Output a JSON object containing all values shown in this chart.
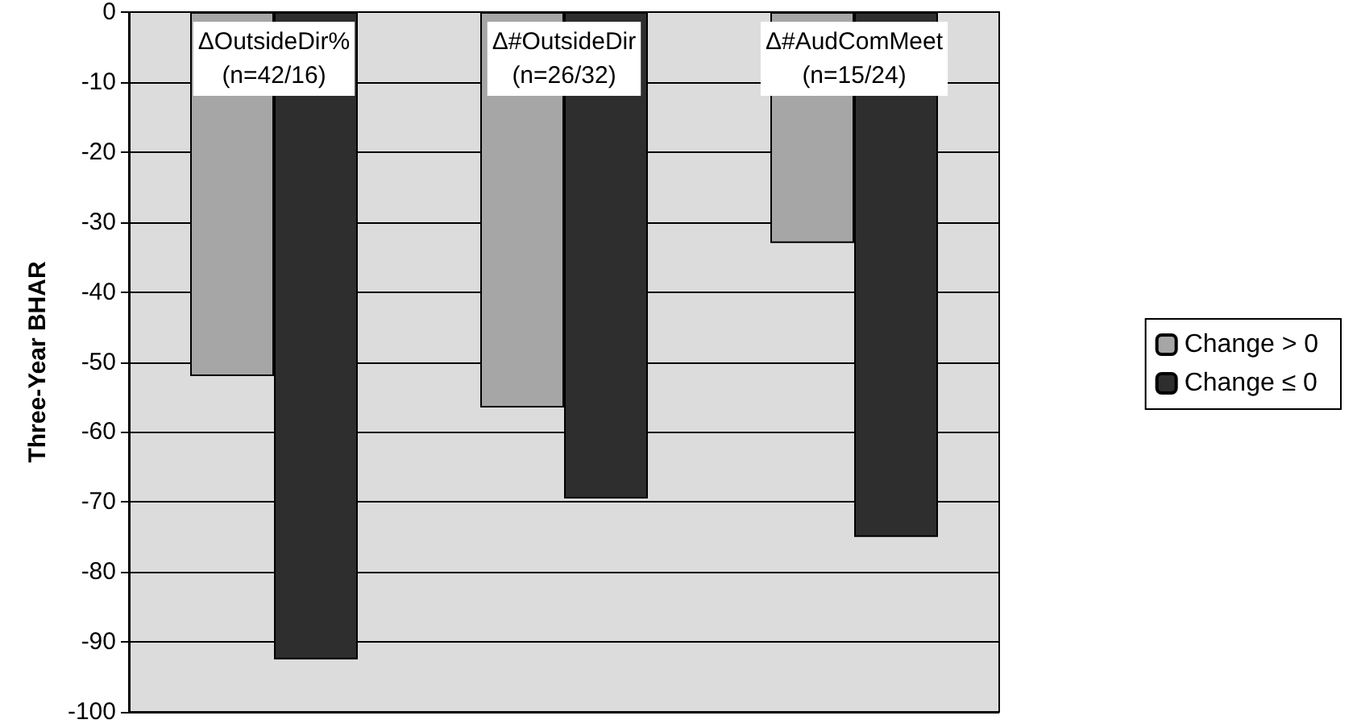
{
  "chart_data": {
    "type": "bar",
    "ylabel": "Three-Year BHAR",
    "categories": [
      "ΔOutsideDir%\n(n=42/16)",
      "Δ#OutsideDir\n(n=26/32)",
      "Δ#AudComMeet\n(n=15/24)"
    ],
    "series": [
      {
        "name": "Change > 0",
        "color": "#a6a6a6",
        "values": [
          -52,
          -56.5,
          -33
        ]
      },
      {
        "name": "Change ≤ 0",
        "color": "#2e2e2e",
        "values": [
          -92.5,
          -69.5,
          -75
        ]
      }
    ],
    "ylim": [
      -100,
      0
    ],
    "yticks": [
      -100,
      -90,
      -80,
      -70,
      -60,
      -50,
      -40,
      -30,
      -20,
      -10,
      0
    ],
    "grid": "y",
    "legend": "right"
  }
}
